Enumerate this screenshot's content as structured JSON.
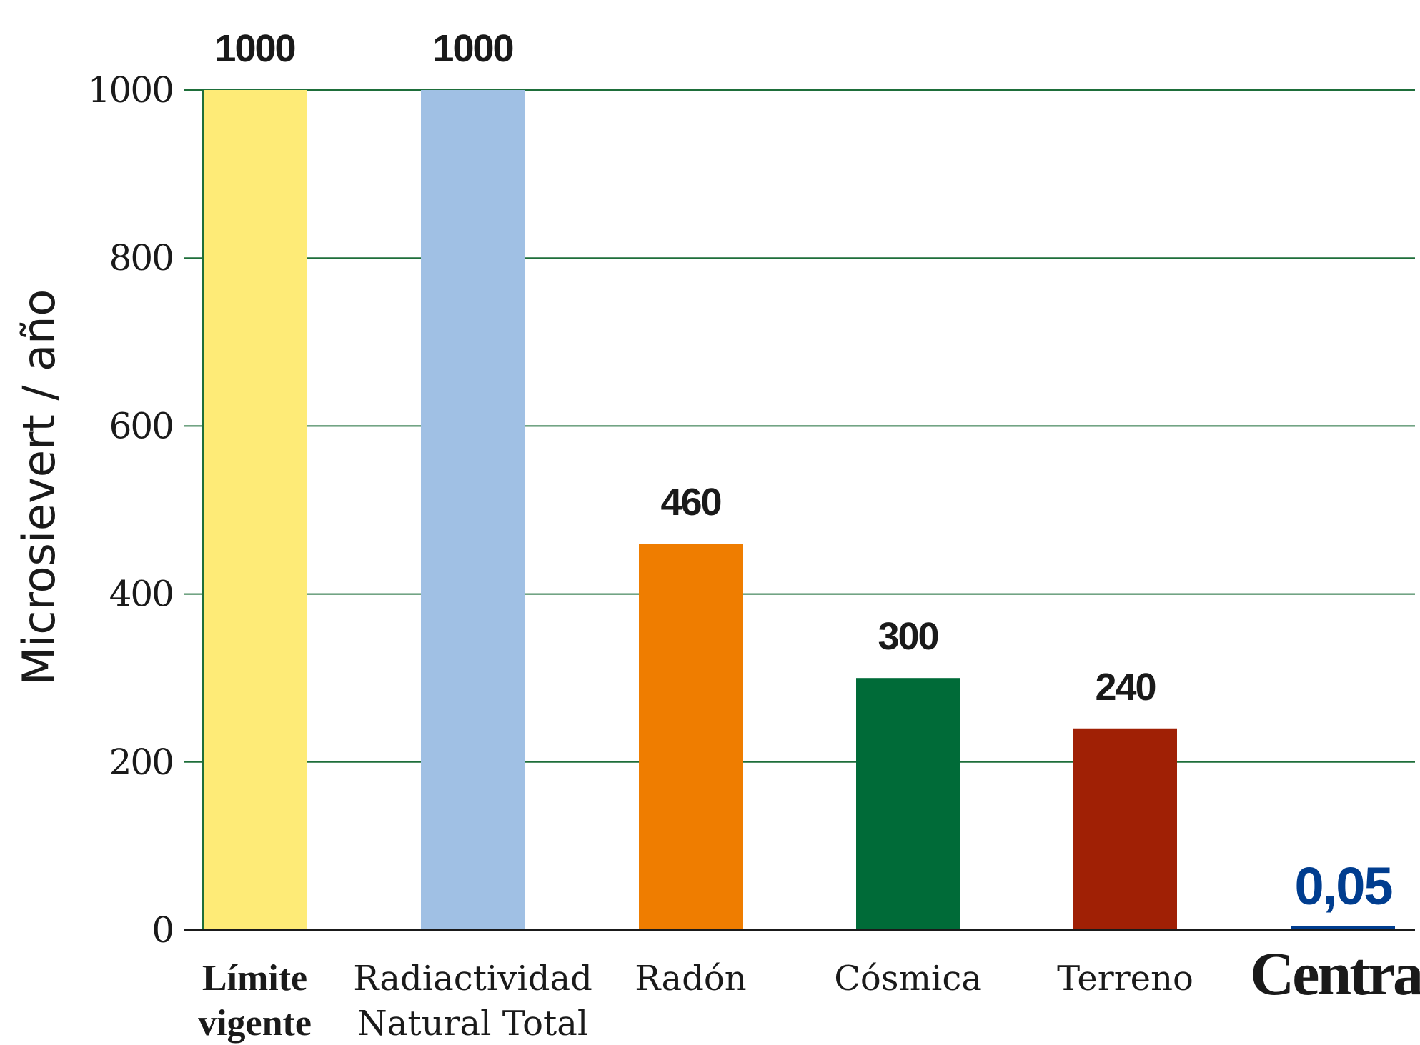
{
  "chart_data": {
    "type": "bar",
    "ylabel": "Microsievert  /  año",
    "ylim": [
      0,
      1000
    ],
    "yticks": [
      "0",
      "200",
      "400",
      "600",
      "800",
      "1000"
    ],
    "grid": true,
    "categories": [
      [
        "Límite",
        "vigente"
      ],
      [
        "Radiactividad",
        "Natural Total"
      ],
      [
        "Radón"
      ],
      [
        "Cósmica"
      ],
      [
        "Terreno"
      ],
      [
        "Central"
      ]
    ],
    "values": [
      1000,
      1000,
      460,
      300,
      240,
      0.05
    ],
    "value_labels": [
      "1000",
      "1000",
      "460",
      "300",
      "240",
      "0,05"
    ],
    "colors": [
      "#FEEB77",
      "#A0C0E4",
      "#EF7D00",
      "#006B38",
      "#A02005",
      "#003D8F"
    ],
    "value_label_colors": [
      "#1a1a1a",
      "#1a1a1a",
      "#1a1a1a",
      "#1a1a1a",
      "#1a1a1a",
      "#003D8F"
    ],
    "grid_color": "#1E6E3A"
  }
}
